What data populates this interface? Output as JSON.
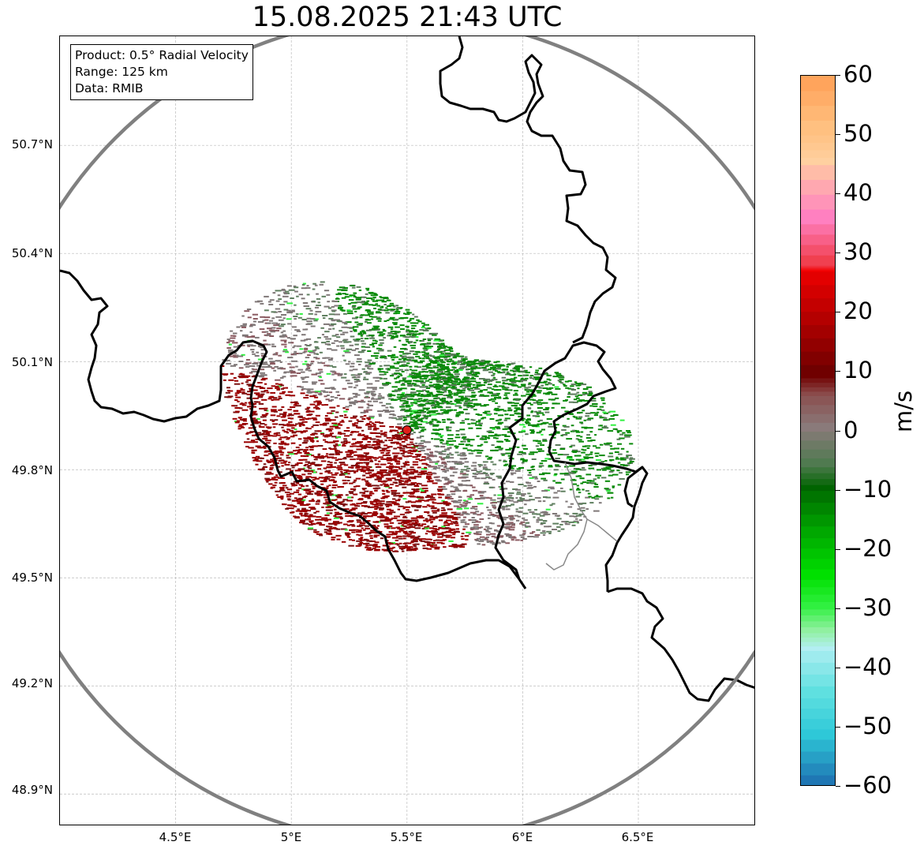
{
  "title": "15.08.2025 21:43 UTC",
  "info_box": {
    "product": "Product: 0.5° Radial Velocity",
    "range": "Range: 125 km",
    "data": "Data: RMIB"
  },
  "lat_labels": [
    "50.7°N",
    "50.4°N",
    "50.1°N",
    "49.8°N",
    "49.5°N",
    "49.2°N",
    "48.9°N"
  ],
  "lon_labels": [
    "4.5°E",
    "5°E",
    "5.5°E",
    "6°E",
    "6.5°E"
  ],
  "radar_site": {
    "lon": 5.5,
    "lat": 49.91,
    "marker_color": "#e0201a"
  },
  "colorbar": {
    "unit": "m/s",
    "min": -60,
    "max": 60,
    "tick_labels": [
      "60",
      "50",
      "40",
      "30",
      "20",
      "10",
      "0",
      "−10",
      "−20",
      "−30",
      "−40",
      "−50",
      "−60"
    ],
    "stops": [
      {
        "value": -60,
        "color": "#1f77b4"
      },
      {
        "value": -52,
        "color": "#2ec8d8"
      },
      {
        "value": -45,
        "color": "#5fe0e0"
      },
      {
        "value": -37,
        "color": "#b3eef2"
      },
      {
        "value": -34,
        "color": "#90f0a0"
      },
      {
        "value": -30,
        "color": "#30f040"
      },
      {
        "value": -25,
        "color": "#00e000"
      },
      {
        "value": -18,
        "color": "#00a800"
      },
      {
        "value": -10,
        "color": "#006400"
      },
      {
        "value": -6,
        "color": "#507a50"
      },
      {
        "value": 0,
        "color": "#8a7a7a"
      },
      {
        "value": 6,
        "color": "#8a4a4a"
      },
      {
        "value": 9,
        "color": "#700000"
      },
      {
        "value": 18,
        "color": "#b40000"
      },
      {
        "value": 27,
        "color": "#f20000"
      },
      {
        "value": 28,
        "color": "#f04050"
      },
      {
        "value": 35,
        "color": "#ff80c0"
      },
      {
        "value": 45,
        "color": "#ffd0a0"
      },
      {
        "value": 50,
        "color": "#ffc080"
      },
      {
        "value": 60,
        "color": "#ff9a50"
      }
    ]
  },
  "colors": {
    "range_ring": "#808080",
    "border": "#000000",
    "grid": "#bbbbbb",
    "inbound_green": "#0a8a0a",
    "outbound_red": "#9a0000",
    "near_zero": "#7f7777"
  }
}
